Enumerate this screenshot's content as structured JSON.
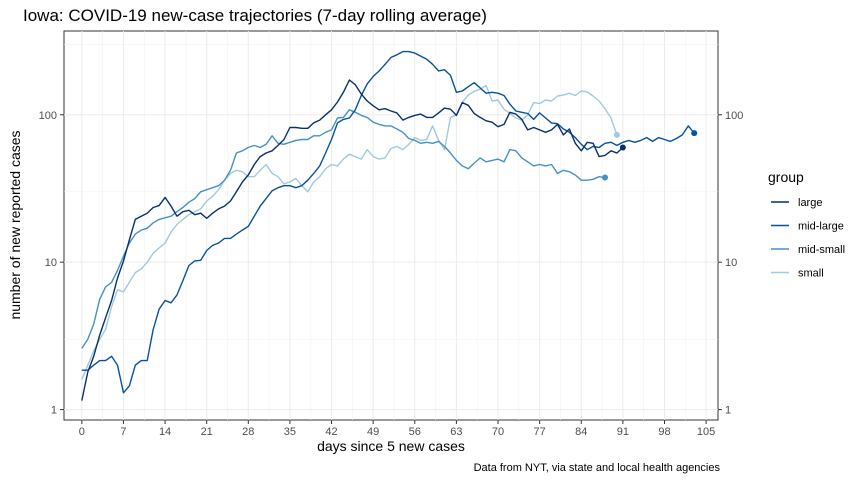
{
  "chart_data": {
    "type": "line",
    "title": "Iowa: COVID-19 new-case trajectories (7-day rolling average)",
    "xlabel": "days since 5 new cases",
    "ylabel": "number of new reported cases",
    "caption": "Data from NYT, via state and local health agencies",
    "xlim": [
      -3,
      107
    ],
    "ylim": [
      0.85,
      370
    ],
    "yscale": "log10",
    "grid": true,
    "x_ticks": [
      0,
      7,
      14,
      21,
      28,
      35,
      42,
      49,
      56,
      63,
      70,
      77,
      84,
      91,
      98,
      105
    ],
    "x_tick_labels": [
      "0",
      "7",
      "14",
      "21",
      "28",
      "35",
      "42",
      "49",
      "56",
      "63",
      "70",
      "77",
      "84",
      "91",
      "98",
      "105"
    ],
    "y_ticks": [
      1,
      10,
      100
    ],
    "y_tick_labels": [
      "1",
      "10",
      "100"
    ],
    "legend": {
      "title": "group",
      "position": "right",
      "entries": [
        "large",
        "mid-large",
        "mid-small",
        "small"
      ]
    },
    "series": [
      {
        "name": "large",
        "color": "#08306b",
        "x": [
          0,
          1,
          2,
          3,
          4,
          5,
          6,
          7,
          8,
          9,
          10,
          11,
          12,
          13,
          14,
          15,
          16,
          17,
          18,
          19,
          20,
          21,
          22,
          23,
          24,
          25,
          26,
          27,
          28,
          29,
          30,
          31,
          32,
          33,
          34,
          35,
          36,
          37,
          38,
          39,
          40,
          41,
          42,
          43,
          44,
          45,
          46,
          47,
          48,
          49,
          50,
          51,
          52,
          53,
          54,
          55,
          56,
          57,
          58,
          59,
          60,
          61,
          62,
          63,
          64,
          65,
          66,
          67,
          68,
          69,
          70,
          71,
          72,
          73,
          74,
          75,
          76,
          77,
          78,
          79,
          80,
          81,
          82,
          83,
          84,
          85,
          86,
          87,
          88,
          89,
          90,
          91
        ],
        "values": [
          1.15,
          1.8,
          2.3,
          3.2,
          4.2,
          5.5,
          7.8,
          10.2,
          14.2,
          19.5,
          20.5,
          21.5,
          23.5,
          24.2,
          27.5,
          24.0,
          20.5,
          22.0,
          22.5,
          21.0,
          21.5,
          19.8,
          21.5,
          23.0,
          24.0,
          26.0,
          30.0,
          35.0,
          39.0,
          46.0,
          52.0,
          55.0,
          57.0,
          62.0,
          68.0,
          82.0,
          82.0,
          81.0,
          81.0,
          88.0,
          92.0,
          100.0,
          108.0,
          122.0,
          142.0,
          172.0,
          160.0,
          138.0,
          124.0,
          115.0,
          108.0,
          110.0,
          106.0,
          103.0,
          92.0,
          96.0,
          99.0,
          101.0,
          96.0,
          96.0,
          103.0,
          111.0,
          109.0,
          99.0,
          121.0,
          116.0,
          102.0,
          96.0,
          91.0,
          89.0,
          83.0,
          86.0,
          104.0,
          101.0,
          93.0,
          79.0,
          82.0,
          79.0,
          76.0,
          79.0,
          86.0,
          73.0,
          80.0,
          64.0,
          57.0,
          65.0,
          64.0,
          52.0,
          53.0,
          57.0,
          55.0,
          60.0
        ]
      },
      {
        "name": "mid-large",
        "color": "#08519c",
        "x": [
          0,
          1,
          2,
          3,
          4,
          5,
          6,
          7,
          8,
          9,
          10,
          11,
          12,
          13,
          14,
          15,
          16,
          17,
          18,
          19,
          20,
          21,
          22,
          23,
          24,
          25,
          26,
          27,
          28,
          29,
          30,
          31,
          32,
          33,
          34,
          35,
          36,
          37,
          38,
          39,
          40,
          41,
          42,
          43,
          44,
          45,
          46,
          47,
          48,
          49,
          50,
          51,
          52,
          53,
          54,
          55,
          56,
          57,
          58,
          59,
          60,
          61,
          62,
          63,
          64,
          65,
          66,
          67,
          68,
          69,
          70,
          71,
          72,
          73,
          74,
          75,
          76,
          77,
          78,
          79,
          80,
          81,
          82,
          83,
          84,
          85,
          86,
          87,
          88,
          89,
          90,
          91,
          92,
          93,
          94,
          95,
          96,
          97,
          98,
          99,
          100,
          101,
          102,
          103
        ],
        "values": [
          1.85,
          1.85,
          2.0,
          2.15,
          2.15,
          2.3,
          2.0,
          1.3,
          1.45,
          2.0,
          2.15,
          2.15,
          3.5,
          4.8,
          5.5,
          5.3,
          6.0,
          7.5,
          9.5,
          10.2,
          10.3,
          12.0,
          13.0,
          13.5,
          14.5,
          14.5,
          15.5,
          16.5,
          17.5,
          20.5,
          24.0,
          27.0,
          30.5,
          32.0,
          33.0,
          33.0,
          32.0,
          33.0,
          36.0,
          40.0,
          45.0,
          55.0,
          68.0,
          88.0,
          93.0,
          95.0,
          108.0,
          135.0,
          162.0,
          182.0,
          198.0,
          220.0,
          245.0,
          255.0,
          268.0,
          268.0,
          262.0,
          250.0,
          238.0,
          220.0,
          198.0,
          202.0,
          185.0,
          142.0,
          145.0,
          155.0,
          165.0,
          152.0,
          140.0,
          142.0,
          140.0,
          135.0,
          118.0,
          106.0,
          104.0,
          102.0,
          93.0,
          103.0,
          95.0,
          88.0,
          87.0,
          80.0,
          76.0,
          70.0,
          63.0,
          58.0,
          61.0,
          60.0,
          64.0,
          65.0,
          62.0,
          65.0,
          67.0,
          65.0,
          67.0,
          70.0,
          66.0,
          70.0,
          68.0,
          66.0,
          69.0,
          73.0,
          84.0,
          75.0
        ]
      },
      {
        "name": "mid-small",
        "color": "#4292c6",
        "x": [
          0,
          1,
          2,
          3,
          4,
          5,
          6,
          7,
          8,
          9,
          10,
          11,
          12,
          13,
          14,
          15,
          16,
          17,
          18,
          19,
          20,
          21,
          22,
          23,
          24,
          25,
          26,
          27,
          28,
          29,
          30,
          31,
          32,
          33,
          34,
          35,
          36,
          37,
          38,
          39,
          40,
          41,
          42,
          43,
          44,
          45,
          46,
          47,
          48,
          49,
          50,
          51,
          52,
          53,
          54,
          55,
          56,
          57,
          58,
          59,
          60,
          61,
          62,
          63,
          64,
          65,
          66,
          67,
          68,
          69,
          70,
          71,
          72,
          73,
          74,
          75,
          76,
          77,
          78,
          79,
          80,
          81,
          82,
          83,
          84,
          85,
          86,
          87,
          88
        ],
        "values": [
          2.6,
          3.0,
          3.8,
          5.6,
          6.8,
          7.3,
          8.8,
          11.0,
          13.5,
          15.5,
          16.5,
          17.0,
          18.5,
          19.5,
          20.0,
          20.5,
          22.0,
          23.5,
          25.5,
          27.0,
          30.0,
          31.0,
          32.0,
          33.0,
          36.0,
          42.0,
          55.0,
          57.0,
          60.0,
          62.0,
          60.0,
          63.0,
          72.0,
          64.0,
          63.0,
          65.0,
          67.0,
          68.0,
          68.0,
          72.0,
          72.0,
          76.0,
          79.0,
          95.0,
          96.0,
          108.0,
          104.0,
          99.0,
          96.0,
          89.0,
          86.0,
          84.0,
          84.0,
          80.0,
          76.0,
          69.0,
          67.0,
          64.0,
          65.0,
          64.0,
          66.0,
          61.0,
          55.0,
          49.0,
          45.0,
          43.0,
          47.0,
          51.0,
          48.0,
          49.0,
          50.0,
          48.0,
          58.0,
          57.0,
          51.0,
          48.0,
          45.0,
          46.0,
          45.0,
          46.0,
          40.0,
          42.0,
          41.0,
          39.0,
          36.0,
          36.0,
          36.5,
          38.0,
          37.5
        ]
      },
      {
        "name": "small",
        "color": "#9ecae1",
        "x": [
          0,
          1,
          2,
          3,
          4,
          5,
          6,
          7,
          8,
          9,
          10,
          11,
          12,
          13,
          14,
          15,
          16,
          17,
          18,
          19,
          20,
          21,
          22,
          23,
          24,
          25,
          26,
          27,
          28,
          29,
          30,
          31,
          32,
          33,
          34,
          35,
          36,
          37,
          38,
          39,
          40,
          41,
          42,
          43,
          44,
          45,
          46,
          47,
          48,
          49,
          50,
          51,
          52,
          53,
          54,
          55,
          56,
          57,
          58,
          59,
          60,
          61,
          62,
          63,
          64,
          65,
          66,
          67,
          68,
          69,
          70,
          71,
          72,
          73,
          74,
          75,
          76,
          77,
          78,
          79,
          80,
          81,
          82,
          83,
          84,
          85,
          86,
          87,
          88,
          89,
          90
        ],
        "values": [
          1.6,
          2.0,
          2.5,
          3.0,
          3.5,
          5.0,
          6.5,
          6.3,
          7.3,
          8.5,
          9.0,
          10.0,
          11.5,
          12.5,
          13.5,
          16.0,
          18.0,
          19.5,
          21.0,
          22.0,
          23.0,
          26.0,
          28.0,
          31.0,
          36.0,
          40.0,
          42.0,
          41.0,
          38.0,
          38.0,
          42.0,
          46.0,
          40.0,
          38.0,
          34.0,
          35.0,
          37.0,
          33.0,
          30.0,
          35.0,
          38.0,
          43.0,
          46.0,
          45.0,
          50.0,
          54.0,
          52.0,
          50.0,
          58.0,
          52.0,
          50.0,
          51.0,
          59.0,
          61.0,
          58.0,
          63.0,
          70.0,
          67.0,
          68.0,
          84.0,
          67.0,
          58.0,
          96.0,
          100.0,
          122.0,
          136.0,
          144.0,
          149.0,
          158.0,
          124.0,
          126.0,
          109.0,
          102.0,
          95.0,
          92.0,
          100.0,
          121.0,
          119.0,
          126.0,
          124.0,
          134.0,
          136.0,
          140.0,
          135.0,
          145.0,
          143.0,
          134.0,
          124.0,
          110.0,
          95.0,
          73.0
        ]
      }
    ]
  }
}
